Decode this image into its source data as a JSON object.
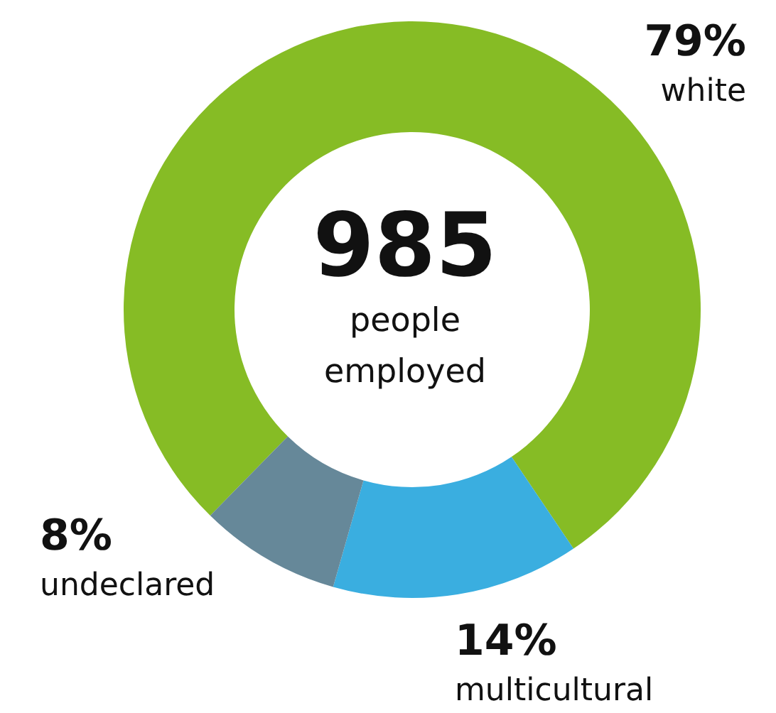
{
  "chart_data": {
    "type": "donut",
    "title": "985",
    "subtitle": "people employed",
    "categories": [
      "white",
      "multicultural",
      "undeclared"
    ],
    "values": [
      79,
      14,
      8
    ],
    "colors": [
      "#86bc25",
      "#3aaee0",
      "#668899"
    ],
    "value_labels": [
      "79%",
      "14%",
      "8%"
    ]
  }
}
